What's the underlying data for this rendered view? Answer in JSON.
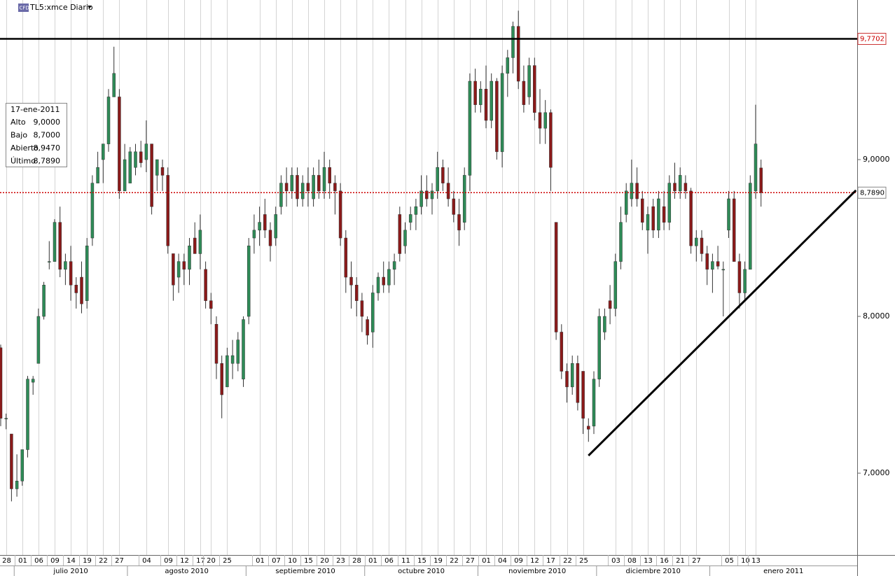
{
  "chart_data": {
    "type": "candlestick",
    "title": "TL5:xmce Diario",
    "ylim": [
      6.478,
      10.018
    ],
    "yticks": [
      {
        "value": 7,
        "label": "7,0000"
      },
      {
        "value": 8,
        "label": "8,0000"
      },
      {
        "value": 9,
        "label": "9,0000"
      }
    ],
    "up_color": "#2e8b57",
    "down_color": "#8b1a1a",
    "grid": "x",
    "candles": [
      [
        7.8,
        7.82,
        7.3,
        7.35
      ],
      [
        7.35,
        7.38,
        7.28,
        7.35
      ],
      [
        7.25,
        7.25,
        6.82,
        6.9
      ],
      [
        6.9,
        7.12,
        6.85,
        6.95
      ],
      [
        6.95,
        7.15,
        6.92,
        7.15
      ],
      [
        7.15,
        7.62,
        7.1,
        7.6
      ],
      [
        7.58,
        7.62,
        7.5,
        7.6
      ],
      [
        7.7,
        8.05,
        7.7,
        8.0
      ],
      [
        8.0,
        8.22,
        7.98,
        8.2
      ],
      [
        8.35,
        8.48,
        8.3,
        8.35
      ],
      [
        8.35,
        8.62,
        8.35,
        8.6
      ],
      [
        8.6,
        8.7,
        8.25,
        8.3
      ],
      [
        8.3,
        8.4,
        8.2,
        8.35
      ],
      [
        8.35,
        8.45,
        8.1,
        8.2
      ],
      [
        8.2,
        8.25,
        8.05,
        8.15
      ],
      [
        8.25,
        8.35,
        8.02,
        8.08
      ],
      [
        8.1,
        8.5,
        8.05,
        8.45
      ],
      [
        8.5,
        8.9,
        8.45,
        8.85
      ],
      [
        8.85,
        9.05,
        8.85,
        8.95
      ],
      [
        9.0,
        9.1,
        8.85,
        9.1
      ],
      [
        9.1,
        9.45,
        9.05,
        9.4
      ],
      [
        9.4,
        9.72,
        9.4,
        9.55
      ],
      [
        9.4,
        9.45,
        8.75,
        8.8
      ],
      [
        8.8,
        9.1,
        8.8,
        9.0
      ],
      [
        8.85,
        9.08,
        8.85,
        9.05
      ],
      [
        8.95,
        9.1,
        8.9,
        9.05
      ],
      [
        9.05,
        9.12,
        8.95,
        8.98
      ],
      [
        9.0,
        9.25,
        8.92,
        9.1
      ],
      [
        9.1,
        9.1,
        8.65,
        8.7
      ],
      [
        8.9,
        9.0,
        8.8,
        9.0
      ],
      [
        8.95,
        9.0,
        8.8,
        8.9
      ],
      [
        8.9,
        8.95,
        8.4,
        8.45
      ],
      [
        8.4,
        8.4,
        8.1,
        8.2
      ],
      [
        8.25,
        8.4,
        8.15,
        8.35
      ],
      [
        8.35,
        8.4,
        8.2,
        8.3
      ],
      [
        8.3,
        8.5,
        8.2,
        8.45
      ],
      [
        8.5,
        8.6,
        8.4,
        8.4
      ],
      [
        8.4,
        8.65,
        8.3,
        8.55
      ],
      [
        8.3,
        8.35,
        8.05,
        8.1
      ],
      [
        8.1,
        8.15,
        7.95,
        8.05
      ],
      [
        7.95,
        8.0,
        7.6,
        7.7
      ],
      [
        7.7,
        7.75,
        7.35,
        7.5
      ],
      [
        7.55,
        7.8,
        7.55,
        7.75
      ],
      [
        7.7,
        7.85,
        7.6,
        7.75
      ],
      [
        7.7,
        7.9,
        7.65,
        7.85
      ],
      [
        7.6,
        8.0,
        7.55,
        7.98
      ],
      [
        8.0,
        8.5,
        7.95,
        8.45
      ],
      [
        8.5,
        8.65,
        8.4,
        8.55
      ],
      [
        8.55,
        8.7,
        8.45,
        8.6
      ],
      [
        8.65,
        8.75,
        8.5,
        8.55
      ],
      [
        8.55,
        8.6,
        8.35,
        8.45
      ],
      [
        8.5,
        8.7,
        8.45,
        8.65
      ],
      [
        8.7,
        8.9,
        8.65,
        8.85
      ],
      [
        8.85,
        8.95,
        8.7,
        8.8
      ],
      [
        8.8,
        8.95,
        8.75,
        8.9
      ],
      [
        8.9,
        8.95,
        8.7,
        8.75
      ],
      [
        8.75,
        8.9,
        8.7,
        8.85
      ],
      [
        8.85,
        8.95,
        8.7,
        8.8
      ],
      [
        8.75,
        8.95,
        8.7,
        8.9
      ],
      [
        8.9,
        9.0,
        8.75,
        8.8
      ],
      [
        8.8,
        9.05,
        8.75,
        8.95
      ],
      [
        8.95,
        9.0,
        8.75,
        8.85
      ],
      [
        8.85,
        8.9,
        8.65,
        8.8
      ],
      [
        8.8,
        8.85,
        8.45,
        8.5
      ],
      [
        8.5,
        8.55,
        8.15,
        8.25
      ],
      [
        8.25,
        8.35,
        8.05,
        8.2
      ],
      [
        8.2,
        8.25,
        8.0,
        8.1
      ],
      [
        8.1,
        8.15,
        7.9,
        8.0
      ],
      [
        7.98,
        8.0,
        7.82,
        7.88
      ],
      [
        7.9,
        8.2,
        7.8,
        8.15
      ],
      [
        8.15,
        8.28,
        8.1,
        8.25
      ],
      [
        8.25,
        8.35,
        8.15,
        8.2
      ],
      [
        8.2,
        8.35,
        8.15,
        8.3
      ],
      [
        8.3,
        8.4,
        8.2,
        8.35
      ],
      [
        8.65,
        8.7,
        8.35,
        8.4
      ],
      [
        8.45,
        8.6,
        8.4,
        8.55
      ],
      [
        8.6,
        8.7,
        8.55,
        8.65
      ],
      [
        8.65,
        8.75,
        8.55,
        8.7
      ],
      [
        8.7,
        8.9,
        8.65,
        8.8
      ],
      [
        8.8,
        8.9,
        8.7,
        8.75
      ],
      [
        8.75,
        8.85,
        8.65,
        8.8
      ],
      [
        8.8,
        9.05,
        8.75,
        8.95
      ],
      [
        8.95,
        9.0,
        8.8,
        8.85
      ],
      [
        8.85,
        8.95,
        8.7,
        8.75
      ],
      [
        8.75,
        8.8,
        8.6,
        8.65
      ],
      [
        8.65,
        8.75,
        8.45,
        8.55
      ],
      [
        8.6,
        8.95,
        8.55,
        8.9
      ],
      [
        8.9,
        9.55,
        8.8,
        9.5
      ],
      [
        9.5,
        9.58,
        9.3,
        9.35
      ],
      [
        9.35,
        9.5,
        9.3,
        9.45
      ],
      [
        9.45,
        9.6,
        9.2,
        9.25
      ],
      [
        9.25,
        9.55,
        9.2,
        9.5
      ],
      [
        9.5,
        9.52,
        9.0,
        9.05
      ],
      [
        9.05,
        9.6,
        8.95,
        9.55
      ],
      [
        9.55,
        9.7,
        9.4,
        9.65
      ],
      [
        9.65,
        9.88,
        9.55,
        9.85
      ],
      [
        9.85,
        9.95,
        9.45,
        9.5
      ],
      [
        9.5,
        9.6,
        9.3,
        9.35
      ],
      [
        9.4,
        9.65,
        9.35,
        9.6
      ],
      [
        9.6,
        9.65,
        9.25,
        9.3
      ],
      [
        9.3,
        9.45,
        9.1,
        9.2
      ],
      [
        9.2,
        9.38,
        9.1,
        9.3
      ],
      [
        9.3,
        9.32,
        8.8,
        8.95
      ],
      [
        8.6,
        8.6,
        7.85,
        7.9
      ],
      [
        7.9,
        7.95,
        7.6,
        7.65
      ],
      [
        7.65,
        7.7,
        7.45,
        7.55
      ],
      [
        7.55,
        7.75,
        7.5,
        7.7
      ],
      [
        7.7,
        7.75,
        7.4,
        7.45
      ],
      [
        7.65,
        7.65,
        7.25,
        7.35
      ],
      [
        7.3,
        7.35,
        7.2,
        7.28
      ],
      [
        7.3,
        7.65,
        7.25,
        7.6
      ],
      [
        7.6,
        8.05,
        7.55,
        8.0
      ],
      [
        7.9,
        8.05,
        7.85,
        8.0
      ],
      [
        8.1,
        8.2,
        7.95,
        8.05
      ],
      [
        8.05,
        8.4,
        8.0,
        8.35
      ],
      [
        8.35,
        8.7,
        8.3,
        8.6
      ],
      [
        8.65,
        8.85,
        8.6,
        8.8
      ],
      [
        8.75,
        9.0,
        8.7,
        8.85
      ],
      [
        8.85,
        8.95,
        8.7,
        8.75
      ],
      [
        8.75,
        8.8,
        8.55,
        8.6
      ],
      [
        8.55,
        8.7,
        8.4,
        8.65
      ],
      [
        8.7,
        8.75,
        8.5,
        8.55
      ],
      [
        8.55,
        8.8,
        8.5,
        8.75
      ],
      [
        8.7,
        8.8,
        8.55,
        8.6
      ],
      [
        8.6,
        8.9,
        8.55,
        8.85
      ],
      [
        8.85,
        8.98,
        8.75,
        8.8
      ],
      [
        8.8,
        8.95,
        8.75,
        8.9
      ],
      [
        8.85,
        8.9,
        8.75,
        8.8
      ],
      [
        8.8,
        8.82,
        8.4,
        8.45
      ],
      [
        8.45,
        8.55,
        8.35,
        8.5
      ],
      [
        8.5,
        8.55,
        8.35,
        8.4
      ],
      [
        8.4,
        8.45,
        8.2,
        8.3
      ],
      [
        8.3,
        8.4,
        8.15,
        8.35
      ],
      [
        8.35,
        8.45,
        8.3,
        8.32
      ],
      [
        8.3,
        8.35,
        8.0,
        8.3
      ],
      [
        8.55,
        8.8,
        8.5,
        8.75
      ],
      [
        8.75,
        8.8,
        8.35,
        8.35
      ],
      [
        8.35,
        8.4,
        8.05,
        8.15
      ],
      [
        8.15,
        8.35,
        8.1,
        8.3
      ],
      [
        8.3,
        8.9,
        8.3,
        8.85
      ],
      [
        8.8,
        9.35,
        8.75,
        9.1
      ],
      [
        8.947,
        9.0,
        8.7,
        8.789
      ]
    ],
    "categories": [
      null,
      "28",
      null,
      null,
      "01",
      null,
      null,
      "06",
      null,
      null,
      "09",
      null,
      null,
      "14",
      null,
      null,
      "19",
      null,
      null,
      "22",
      null,
      null,
      "27",
      null,
      null,
      null,
      null,
      "04",
      null,
      null,
      null,
      "09",
      null,
      null,
      "12",
      null,
      null,
      "17",
      null,
      "20",
      null,
      null,
      "25",
      null,
      null,
      null,
      null,
      null,
      "01",
      null,
      null,
      "07",
      null,
      null,
      "10",
      null,
      null,
      "15",
      null,
      null,
      "20",
      null,
      null,
      "23",
      null,
      null,
      "28",
      null,
      null,
      "01",
      null,
      null,
      "06",
      null,
      null,
      "11",
      null,
      null,
      "15",
      null,
      null,
      "19",
      null,
      null,
      "22",
      null,
      null,
      "27",
      null,
      null,
      "01",
      null,
      null,
      "04",
      null,
      null,
      "09",
      null,
      null,
      "12",
      null,
      null,
      "17",
      null,
      null,
      "22",
      null,
      null,
      "25",
      null,
      null,
      null,
      null,
      null,
      "03",
      null,
      null,
      "08",
      null,
      null,
      "13",
      null,
      null,
      "16",
      null,
      null,
      "21",
      null,
      null,
      "27",
      null,
      null,
      null,
      null,
      null,
      "05",
      null,
      null,
      "10",
      null,
      "13",
      null
    ],
    "months": [
      null,
      null,
      null,
      "julio 2010",
      null,
      null,
      null,
      null,
      null,
      null,
      null,
      null,
      null,
      null,
      null,
      null,
      null,
      null,
      null,
      null,
      null,
      null,
      null,
      null,
      "agosto 2010",
      null,
      null,
      null,
      null,
      null,
      null,
      null,
      null,
      null,
      null,
      null,
      null,
      null,
      null,
      null,
      null,
      null,
      null,
      null,
      null,
      null,
      "septiembre 2010",
      null,
      null,
      null,
      null,
      null,
      null,
      null,
      null,
      null,
      null,
      null,
      null,
      null,
      null,
      null,
      null,
      null,
      null,
      null,
      null,
      null,
      "octubre 2010",
      null,
      null,
      null,
      null,
      null,
      null,
      null,
      null,
      null,
      null,
      null,
      null,
      null,
      null,
      null,
      null,
      null,
      null,
      null,
      null,
      "noviembre 2010",
      null,
      null,
      null,
      null,
      null,
      null,
      null,
      null,
      null,
      null,
      null,
      null,
      null,
      null,
      null,
      null,
      null,
      null,
      null,
      null,
      null,
      "diciembre 2010",
      null,
      null,
      null,
      null,
      null,
      null,
      null,
      null,
      null,
      null,
      null,
      null,
      null,
      null,
      null,
      null,
      null,
      null,
      null,
      null,
      "enero 2011",
      null,
      null,
      null,
      null,
      null,
      null,
      null,
      null,
      null
    ],
    "resistance": {
      "value": 9.7702,
      "label": "9,7702"
    },
    "last_price": {
      "value": 8.789,
      "label": "8,7890"
    },
    "trendline": {
      "x": [
        109,
        158.6
      ],
      "y": [
        7.112,
        8.804
      ]
    },
    "info_box": {
      "date": "17-ene-2011",
      "rows": [
        [
          "Alto",
          "9,0000"
        ],
        [
          "Bajo",
          "8,7000"
        ],
        [
          "Abierto",
          "8,9470"
        ],
        [
          "Último",
          "8,7890"
        ]
      ]
    }
  }
}
